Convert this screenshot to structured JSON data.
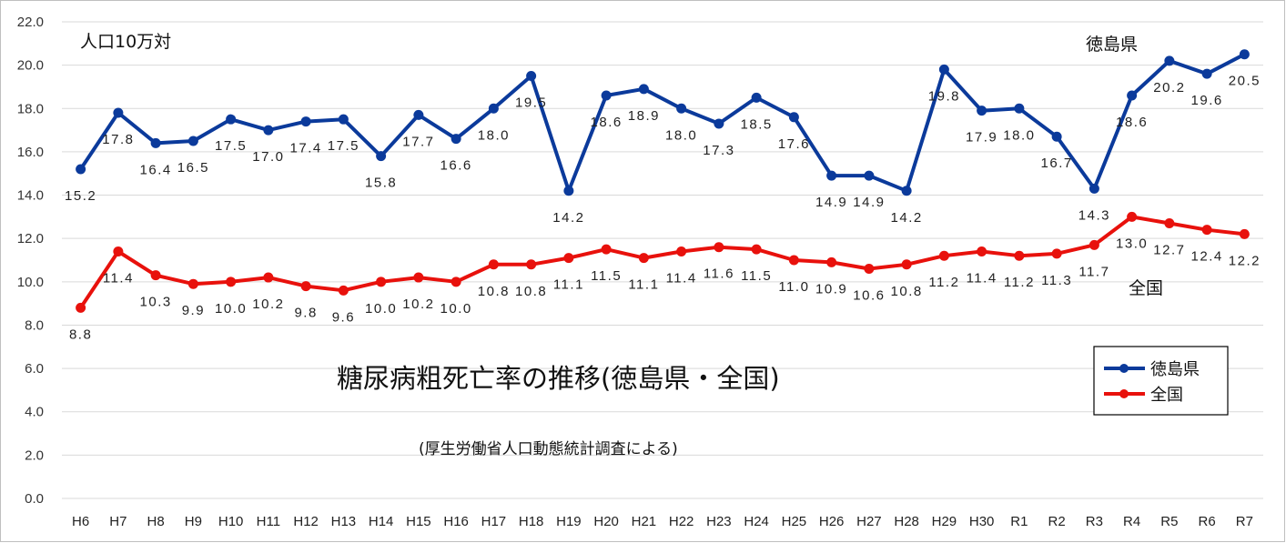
{
  "chart_data": {
    "type": "line",
    "title": "糖尿病粗死亡率の推移(徳島県・全国)",
    "subtitle": "(厚生労働省人口動態統計調査による)",
    "unit_label": "人口10万対",
    "categories": [
      "H6",
      "H7",
      "H8",
      "H9",
      "H10",
      "H11",
      "H12",
      "H13",
      "H14",
      "H15",
      "H16",
      "H17",
      "H18",
      "H19",
      "H20",
      "H21",
      "H22",
      "H23",
      "H24",
      "H25",
      "H26",
      "H27",
      "H28",
      "H29",
      "H30",
      "R1",
      "R2",
      "R3",
      "R4",
      "R5",
      "R6",
      "R7"
    ],
    "ylim": [
      0,
      22
    ],
    "yticks": [
      "0.0",
      "2.0",
      "4.0",
      "6.0",
      "8.0",
      "10.0",
      "12.0",
      "14.0",
      "16.0",
      "18.0",
      "20.0",
      "22.0"
    ],
    "grid": true,
    "legend_position": "right",
    "series": [
      {
        "name": "徳島県",
        "color": "#0b3a9b",
        "values": [
          15.2,
          17.8,
          16.4,
          16.5,
          17.5,
          17.0,
          17.4,
          17.5,
          15.8,
          17.7,
          16.6,
          18.0,
          19.5,
          14.2,
          18.6,
          18.9,
          18.0,
          17.3,
          18.5,
          17.6,
          14.9,
          14.9,
          14.2,
          19.8,
          17.9,
          18.0,
          16.7,
          14.3,
          18.6,
          20.2,
          19.6,
          20.5
        ],
        "labels": [
          "15.2",
          "17.8",
          "16.4",
          "16.5",
          "17.5",
          "17.0",
          "17.4",
          "17.5",
          "15.8",
          "17.7",
          "16.6",
          "18.0",
          "19.5",
          "14.2",
          "18.6",
          "18.9",
          "18.0",
          "17.3",
          "18.5",
          "17.6",
          "14.9",
          "14.9",
          "14.2",
          "19.8",
          "17.9",
          "18.0",
          "16.7",
          "14.3",
          "18.6",
          "20.2",
          "19.6",
          "20.5"
        ]
      },
      {
        "name": "全国",
        "color": "#e8110c",
        "values": [
          8.8,
          11.4,
          10.3,
          9.9,
          10.0,
          10.2,
          9.8,
          9.6,
          10.0,
          10.2,
          10.0,
          10.8,
          10.8,
          11.1,
          11.5,
          11.1,
          11.4,
          11.6,
          11.5,
          11.0,
          10.9,
          10.6,
          10.8,
          11.2,
          11.4,
          11.2,
          11.3,
          11.7,
          13.0,
          12.7,
          12.4,
          12.2
        ],
        "labels": [
          "8.8",
          "11.4",
          "10.3",
          "9.9",
          "10.0",
          "10.2",
          "9.8",
          "9.6",
          "10.0",
          "10.2",
          "10.0",
          "10.8",
          "10.8",
          "11.1",
          "11.5",
          "11.1",
          "11.4",
          "11.6",
          "11.5",
          "11.0",
          "10.9",
          "10.6",
          "10.8",
          "11.2",
          "11.4",
          "11.2",
          "11.3",
          "11.7",
          "13.0",
          "12.7",
          "12.4",
          "12.2"
        ]
      }
    ]
  }
}
